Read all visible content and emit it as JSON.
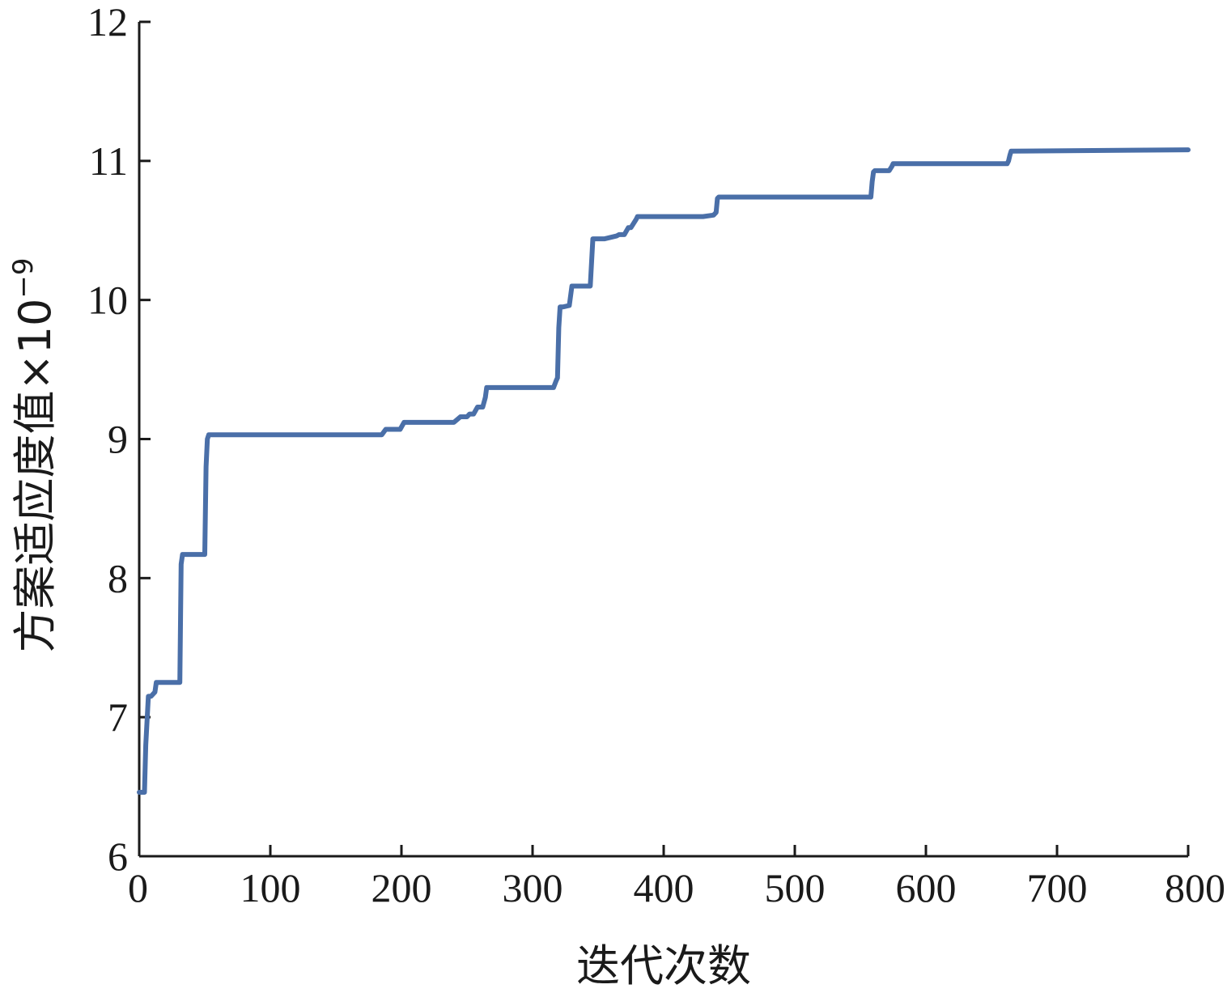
{
  "chart_data": {
    "type": "line",
    "title": "",
    "xlabel": "迭代次数",
    "ylabel": "方案适应度值×10",
    "ylabel_exponent": "−9",
    "xlim": [
      0,
      800
    ],
    "ylim": [
      6,
      12
    ],
    "xticks": [
      "0",
      "100",
      "200",
      "300",
      "400",
      "500",
      "600",
      "700",
      "800"
    ],
    "yticks": [
      "6",
      "7",
      "8",
      "9",
      "10",
      "11",
      "12"
    ],
    "grid": false,
    "legend": "none",
    "series": [
      {
        "color": "#4a6fa8",
        "x": [
          0,
          4,
          5,
          7,
          9,
          12,
          13,
          16,
          19,
          31,
          32,
          33,
          35,
          50,
          51,
          52,
          53,
          55,
          185,
          188,
          196,
          199,
          202,
          237,
          240,
          245,
          250,
          252,
          255,
          258,
          262,
          264,
          265,
          316,
          318,
          319,
          320,
          321,
          322,
          323,
          328,
          330,
          331,
          344,
          346,
          347,
          350,
          355,
          364,
          366,
          370,
          373,
          375,
          379,
          380,
          430,
          438,
          440,
          441,
          442,
          558,
          559,
          560,
          561,
          572,
          574,
          575,
          580,
          662,
          663,
          664,
          665,
          666,
          800
        ],
        "y": [
          6.46,
          6.46,
          6.8,
          7.15,
          7.15,
          7.18,
          7.25,
          7.25,
          7.25,
          7.25,
          8.1,
          8.17,
          8.17,
          8.17,
          8.8,
          9.0,
          9.03,
          9.03,
          9.03,
          9.07,
          9.07,
          9.07,
          9.12,
          9.12,
          9.12,
          9.16,
          9.16,
          9.18,
          9.18,
          9.23,
          9.23,
          9.3,
          9.37,
          9.37,
          9.42,
          9.44,
          9.8,
          9.95,
          9.95,
          9.95,
          9.96,
          10.1,
          10.1,
          10.1,
          10.44,
          10.44,
          10.44,
          10.44,
          10.46,
          10.47,
          10.47,
          10.52,
          10.52,
          10.58,
          10.6,
          10.6,
          10.61,
          10.63,
          10.73,
          10.74,
          10.74,
          10.85,
          10.92,
          10.93,
          10.93,
          10.96,
          10.98,
          10.98,
          10.98,
          11.0,
          11.04,
          11.07,
          11.07,
          11.08
        ]
      }
    ]
  }
}
